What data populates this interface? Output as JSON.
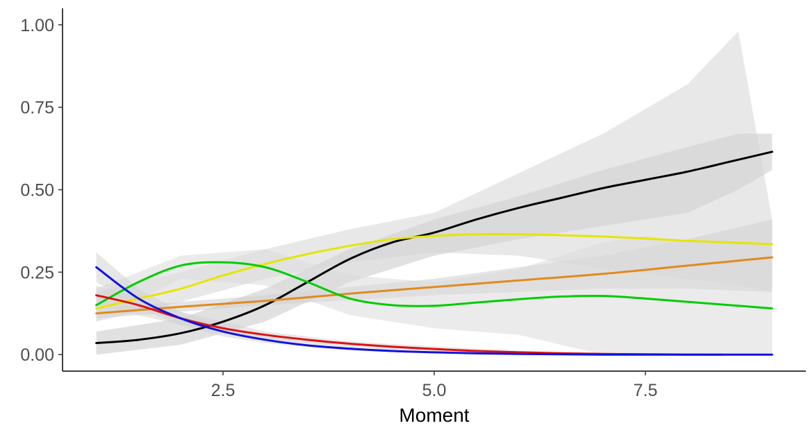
{
  "chart_data": {
    "type": "line",
    "title": "",
    "xlabel": "Moment",
    "ylabel": "",
    "xlim": [
      0.6,
      9.4
    ],
    "ylim": [
      -0.05,
      1.05
    ],
    "x_ticks": [
      2.5,
      5.0,
      7.5
    ],
    "x_tick_labels": [
      "2.5",
      "5.0",
      "7.5"
    ],
    "y_ticks": [
      0.0,
      0.25,
      0.5,
      0.75,
      1.0
    ],
    "y_tick_labels": [
      "0.00",
      "0.25",
      "0.50",
      "0.75",
      "1.00"
    ],
    "grid": false,
    "legend": "none",
    "series": [
      {
        "color": "#000000",
        "x": [
          1,
          1.5,
          2,
          2.5,
          3,
          3.5,
          4,
          4.5,
          5,
          5.5,
          6,
          6.5,
          7,
          7.5,
          8,
          8.5,
          9
        ],
        "y": [
          0.035,
          0.045,
          0.065,
          0.1,
          0.15,
          0.22,
          0.29,
          0.34,
          0.37,
          0.41,
          0.445,
          0.475,
          0.505,
          0.53,
          0.555,
          0.585,
          0.615
        ],
        "band": {
          "color": "#c8c8c8",
          "x": [
            1,
            2,
            3,
            4,
            5,
            6,
            7,
            8,
            8.6,
            9
          ],
          "lower": [
            0.0,
            0.03,
            0.1,
            0.22,
            0.3,
            0.35,
            0.39,
            0.43,
            0.5,
            0.56
          ],
          "upper": [
            0.07,
            0.11,
            0.2,
            0.32,
            0.41,
            0.48,
            0.56,
            0.63,
            0.67,
            0.67
          ]
        }
      },
      {
        "color": "#e5e500",
        "x": [
          1,
          1.5,
          2,
          2.5,
          3,
          3.5,
          4,
          4.5,
          5,
          5.5,
          6,
          6.5,
          7,
          7.5,
          8,
          8.5,
          9
        ],
        "y": [
          0.14,
          0.17,
          0.2,
          0.24,
          0.275,
          0.305,
          0.33,
          0.35,
          0.36,
          0.365,
          0.365,
          0.362,
          0.358,
          0.352,
          0.345,
          0.34,
          0.335
        ],
        "band": {
          "color": "#d6d6d6",
          "x": [
            1,
            2,
            3,
            4,
            5,
            6,
            7,
            8,
            8.6,
            9
          ],
          "lower": [
            0.1,
            0.16,
            0.23,
            0.28,
            0.31,
            0.3,
            0.26,
            0.23,
            0.21,
            0.19
          ],
          "upper": [
            0.19,
            0.25,
            0.32,
            0.38,
            0.43,
            0.55,
            0.67,
            0.82,
            0.98,
            0.41
          ]
        }
      },
      {
        "color": "#e08a1e",
        "x": [
          1,
          2,
          3,
          4,
          5,
          6,
          7,
          8,
          9
        ],
        "y": [
          0.125,
          0.145,
          0.163,
          0.185,
          0.205,
          0.225,
          0.245,
          0.27,
          0.295
        ],
        "band": {
          "color": "#d0d0d0",
          "x": [
            1,
            3,
            5,
            7,
            8,
            9
          ],
          "lower": [
            0.11,
            0.15,
            0.18,
            0.2,
            0.2,
            0.19
          ],
          "upper": [
            0.14,
            0.18,
            0.23,
            0.3,
            0.35,
            0.41
          ]
        }
      },
      {
        "color": "#00cc00",
        "x": [
          1,
          1.5,
          2,
          2.5,
          3,
          3.5,
          4,
          4.5,
          5,
          5.5,
          6,
          6.5,
          7,
          7.5,
          8,
          8.5,
          9
        ],
        "y": [
          0.15,
          0.22,
          0.27,
          0.28,
          0.265,
          0.22,
          0.17,
          0.15,
          0.148,
          0.158,
          0.168,
          0.176,
          0.178,
          0.17,
          0.16,
          0.15,
          0.14
        ],
        "band": {
          "color": "#dadada",
          "x": [
            1,
            2,
            3,
            4,
            5,
            6,
            7,
            7.5,
            8,
            8.5,
            9
          ],
          "lower": [
            0.1,
            0.23,
            0.21,
            0.12,
            0.08,
            0.06,
            0.0,
            0.0,
            0.0,
            0.0,
            0.0
          ],
          "upper": [
            0.2,
            0.3,
            0.32,
            0.24,
            0.22,
            0.26,
            0.34,
            0.36,
            0.34,
            0.32,
            0.3
          ]
        }
      },
      {
        "color": "#dd1111",
        "x": [
          1,
          1.5,
          2,
          2.5,
          3,
          3.5,
          4,
          4.5,
          5,
          5.5,
          6,
          6.5,
          7,
          7.5,
          8,
          8.4
        ],
        "y": [
          0.18,
          0.15,
          0.11,
          0.08,
          0.06,
          0.045,
          0.033,
          0.024,
          0.017,
          0.011,
          0.007,
          0.004,
          0.002,
          0.001,
          0.0,
          0.0
        ],
        "band": {
          "color": "#d4d4d4",
          "x": [
            1,
            2,
            3,
            4,
            5,
            6,
            7,
            8.4
          ],
          "lower": [
            0.15,
            0.09,
            0.05,
            0.025,
            0.01,
            0.003,
            0.0,
            0.0
          ],
          "upper": [
            0.21,
            0.13,
            0.07,
            0.04,
            0.025,
            0.012,
            0.006,
            0.003
          ]
        }
      },
      {
        "color": "#1111dd",
        "x": [
          1,
          1.5,
          2,
          2.5,
          3,
          3.5,
          4,
          4.5,
          5,
          5.5,
          6,
          6.5,
          7,
          7.5,
          8,
          8.5,
          9
        ],
        "y": [
          0.265,
          0.17,
          0.11,
          0.07,
          0.045,
          0.028,
          0.018,
          0.011,
          0.007,
          0.004,
          0.002,
          0.001,
          0.0,
          0.0,
          0.0,
          0.0,
          0.0
        ],
        "band": {
          "color": "#d4d4d4",
          "x": [
            1,
            1.5,
            2,
            2.5,
            3,
            4,
            5,
            6,
            7,
            9
          ],
          "lower": [
            0.22,
            0.14,
            0.09,
            0.055,
            0.035,
            0.012,
            0.004,
            0.001,
            0.0,
            0.0
          ],
          "upper": [
            0.31,
            0.2,
            0.13,
            0.085,
            0.055,
            0.024,
            0.01,
            0.004,
            0.002,
            0.001
          ]
        }
      }
    ]
  }
}
